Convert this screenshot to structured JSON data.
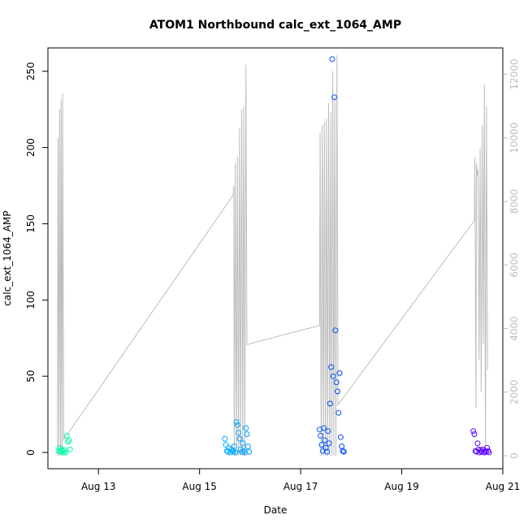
{
  "chart_data": {
    "type": "scatter",
    "title": "ATOM1 Northbound calc_ext_1064_AMP",
    "xlabel": "Date",
    "ylabel": "calc_ext_1064_AMP",
    "xlim": [
      "2023-08-12T00:00",
      "2023-08-21T00:00"
    ],
    "ylim": [
      0,
      260
    ],
    "y2lim": [
      0,
      12600
    ],
    "x_ticks": [
      "Aug 13",
      "Aug 15",
      "Aug 17",
      "Aug 19",
      "Aug 21"
    ],
    "x_tick_dates": [
      "2023-08-13",
      "2023-08-15",
      "2023-08-17",
      "2023-08-19",
      "2023-08-21"
    ],
    "y_ticks": [
      0,
      50,
      100,
      150,
      200,
      250
    ],
    "y2_ticks": [
      0,
      2000,
      4000,
      6000,
      8000,
      10000,
      12000
    ],
    "grid": false,
    "colors": {
      "line": "#bdbdbd",
      "right_axis": "#bdbdbd"
    },
    "series": [
      {
        "type": "scatter",
        "color_gradient": [
          "#00ffa0",
          "#00c8ff",
          "#0040ff",
          "#6000ff"
        ],
        "points": [
          [
            "2023-08-12T05:00",
            1
          ],
          [
            "2023-08-12T05:30",
            3
          ],
          [
            "2023-08-12T06:00",
            0.5
          ],
          [
            "2023-08-12T06:30",
            2
          ],
          [
            "2023-08-12T07:00",
            1
          ],
          [
            "2023-08-12T07:30",
            0
          ],
          [
            "2023-08-12T08:00",
            1.5
          ],
          [
            "2023-08-12T08:30",
            0
          ],
          [
            "2023-08-12T09:00",
            11
          ],
          [
            "2023-08-12T09:30",
            7
          ],
          [
            "2023-08-12T10:00",
            8
          ],
          [
            "2023-08-12T10:30",
            2
          ],
          [
            "2023-08-15T12:00",
            9
          ],
          [
            "2023-08-15T12:30",
            5
          ],
          [
            "2023-08-15T13:00",
            1
          ],
          [
            "2023-08-15T13:30",
            0.5
          ],
          [
            "2023-08-15T14:00",
            3
          ],
          [
            "2023-08-15T14:30",
            0
          ],
          [
            "2023-08-15T15:00",
            2
          ],
          [
            "2023-08-15T15:30",
            1
          ],
          [
            "2023-08-15T16:00",
            0.5
          ],
          [
            "2023-08-15T16:30",
            4
          ],
          [
            "2023-08-15T17:00",
            0
          ],
          [
            "2023-08-15T17:30",
            20
          ],
          [
            "2023-08-15T18:00",
            18
          ],
          [
            "2023-08-15T18:30",
            13
          ],
          [
            "2023-08-15T19:00",
            9
          ],
          [
            "2023-08-15T19:30",
            2
          ],
          [
            "2023-08-15T20:00",
            0.5
          ],
          [
            "2023-08-15T20:30",
            6
          ],
          [
            "2023-08-15T21:00",
            1
          ],
          [
            "2023-08-15T21:30",
            0
          ],
          [
            "2023-08-15T22:00",
            16
          ],
          [
            "2023-08-15T22:30",
            12
          ],
          [
            "2023-08-15T23:00",
            4
          ],
          [
            "2023-08-15T23:30",
            0.5
          ],
          [
            "2023-08-17T09:00",
            15
          ],
          [
            "2023-08-17T09:30",
            11
          ],
          [
            "2023-08-17T10:00",
            5
          ],
          [
            "2023-08-17T10:30",
            1
          ],
          [
            "2023-08-17T11:00",
            16
          ],
          [
            "2023-08-17T11:30",
            8
          ],
          [
            "2023-08-17T12:00",
            3
          ],
          [
            "2023-08-17T12:30",
            0.5
          ],
          [
            "2023-08-17T13:00",
            14
          ],
          [
            "2023-08-17T13:30",
            6
          ],
          [
            "2023-08-17T14:00",
            32
          ],
          [
            "2023-08-17T14:30",
            56
          ],
          [
            "2023-08-17T15:00",
            258
          ],
          [
            "2023-08-17T15:30",
            50
          ],
          [
            "2023-08-17T16:00",
            233
          ],
          [
            "2023-08-17T16:30",
            80
          ],
          [
            "2023-08-17T17:00",
            46
          ],
          [
            "2023-08-17T17:30",
            40
          ],
          [
            "2023-08-17T18:00",
            26
          ],
          [
            "2023-08-17T18:30",
            52
          ],
          [
            "2023-08-17T19:00",
            10
          ],
          [
            "2023-08-17T19:30",
            4
          ],
          [
            "2023-08-17T20:00",
            1
          ],
          [
            "2023-08-17T20:30",
            0.5
          ],
          [
            "2023-08-20T10:00",
            14
          ],
          [
            "2023-08-20T10:30",
            12
          ],
          [
            "2023-08-20T11:00",
            1
          ],
          [
            "2023-08-20T11:30",
            0.5
          ],
          [
            "2023-08-20T12:00",
            6
          ],
          [
            "2023-08-20T12:30",
            2
          ],
          [
            "2023-08-20T13:00",
            0
          ],
          [
            "2023-08-20T13:30",
            1.5
          ],
          [
            "2023-08-20T14:00",
            0.5
          ],
          [
            "2023-08-20T14:30",
            2
          ],
          [
            "2023-08-20T15:00",
            0
          ],
          [
            "2023-08-20T15:30",
            1
          ],
          [
            "2023-08-20T16:00",
            0.5
          ],
          [
            "2023-08-20T16:30",
            3
          ],
          [
            "2023-08-20T17:00",
            1
          ],
          [
            "2023-08-20T17:30",
            0
          ]
        ]
      },
      {
        "type": "line",
        "axis": "right",
        "points": [
          [
            "2023-08-12T04:30",
            0
          ],
          [
            "2023-08-12T04:45",
            10000
          ],
          [
            "2023-08-12T05:15",
            0
          ],
          [
            "2023-08-12T05:30",
            10900
          ],
          [
            "2023-08-12T06:00",
            0
          ],
          [
            "2023-08-12T06:15",
            11200
          ],
          [
            "2023-08-12T06:45",
            0
          ],
          [
            "2023-08-12T07:00",
            11400
          ],
          [
            "2023-08-12T07:30",
            500
          ],
          [
            "2023-08-15T16:00",
            8200
          ],
          [
            "2023-08-15T16:15",
            8500
          ],
          [
            "2023-08-15T16:30",
            0
          ],
          [
            "2023-08-15T17:00",
            9200
          ],
          [
            "2023-08-15T17:30",
            0
          ],
          [
            "2023-08-15T18:00",
            9400
          ],
          [
            "2023-08-15T18:30",
            0
          ],
          [
            "2023-08-15T19:00",
            10300
          ],
          [
            "2023-08-15T19:30",
            0
          ],
          [
            "2023-08-15T20:00",
            10900
          ],
          [
            "2023-08-15T20:30",
            0
          ],
          [
            "2023-08-15T21:00",
            11000
          ],
          [
            "2023-08-15T21:30",
            0
          ],
          [
            "2023-08-15T22:00",
            12300
          ],
          [
            "2023-08-15T22:30",
            3500
          ],
          [
            "2023-08-17T09:00",
            4100
          ],
          [
            "2023-08-17T09:15",
            10200
          ],
          [
            "2023-08-17T09:45",
            0
          ],
          [
            "2023-08-17T10:15",
            10400
          ],
          [
            "2023-08-17T10:45",
            0
          ],
          [
            "2023-08-17T11:15",
            10500
          ],
          [
            "2023-08-17T11:45",
            0
          ],
          [
            "2023-08-17T12:15",
            10600
          ],
          [
            "2023-08-17T12:45",
            0
          ],
          [
            "2023-08-17T13:15",
            11100
          ],
          [
            "2023-08-17T13:45",
            0
          ],
          [
            "2023-08-17T14:15",
            10800
          ],
          [
            "2023-08-17T14:45",
            0
          ],
          [
            "2023-08-17T15:15",
            12100
          ],
          [
            "2023-08-17T15:45",
            0
          ],
          [
            "2023-08-17T16:15",
            11300
          ],
          [
            "2023-08-17T16:45",
            0
          ],
          [
            "2023-08-17T17:15",
            12600
          ],
          [
            "2023-08-17T17:45",
            1600
          ],
          [
            "2023-08-20T10:30",
            7400
          ],
          [
            "2023-08-20T10:45",
            9400
          ],
          [
            "2023-08-20T11:15",
            1500
          ],
          [
            "2023-08-20T11:30",
            9200
          ],
          [
            "2023-08-20T12:00",
            8800
          ],
          [
            "2023-08-20T12:15",
            9000
          ],
          [
            "2023-08-20T12:45",
            3000
          ],
          [
            "2023-08-20T13:15",
            9700
          ],
          [
            "2023-08-20T13:45",
            2000
          ],
          [
            "2023-08-20T14:15",
            10400
          ],
          [
            "2023-08-20T14:45",
            3500
          ],
          [
            "2023-08-20T15:15",
            11700
          ],
          [
            "2023-08-20T15:45",
            0
          ],
          [
            "2023-08-20T16:15",
            11000
          ],
          [
            "2023-08-20T16:45",
            2700
          ]
        ]
      }
    ]
  }
}
